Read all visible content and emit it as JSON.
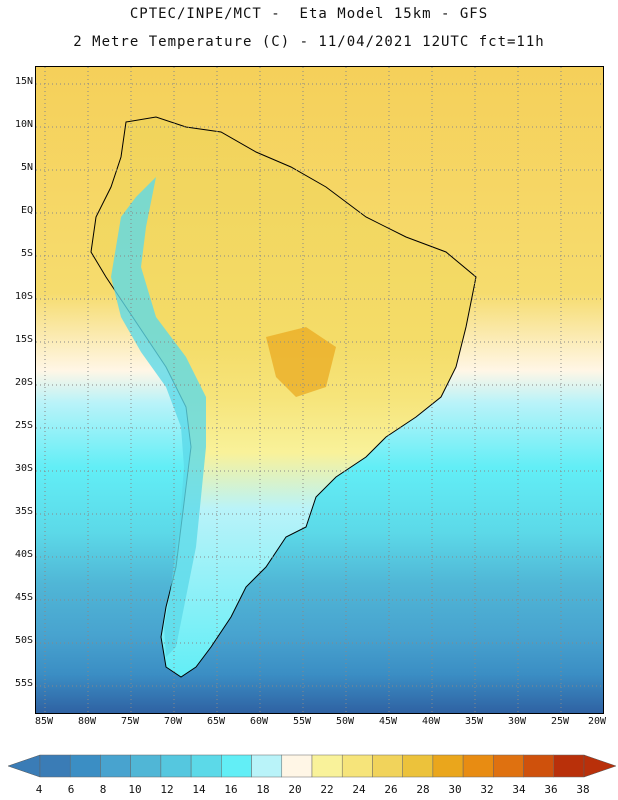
{
  "header": {
    "title_line1": "CPTEC/INPE/MCT -  Eta Model 15km - GFS",
    "title_line2": "2 Metre Temperature (C) - 11/04/2021 12UTC fct=11h"
  },
  "map": {
    "lat_labels": [
      "15N",
      "10N",
      "5N",
      "EQ",
      "5S",
      "10S",
      "15S",
      "20S",
      "25S",
      "30S",
      "35S",
      "40S",
      "45S",
      "50S",
      "55S"
    ],
    "lon_labels": [
      "85W",
      "80W",
      "75W",
      "70W",
      "65W",
      "60W",
      "55W",
      "50W",
      "45W",
      "40W",
      "35W",
      "30W",
      "25W",
      "20W"
    ]
  },
  "colorbar": {
    "labels": [
      "4",
      "6",
      "8",
      "10",
      "12",
      "14",
      "16",
      "18",
      "20",
      "22",
      "24",
      "26",
      "28",
      "30",
      "32",
      "34",
      "36",
      "38"
    ],
    "colors": [
      "#3a7cb6",
      "#3b8ec4",
      "#48a3cf",
      "#50b6d6",
      "#55c7df",
      "#5cd9e8",
      "#62eef6",
      "#b9f3f9",
      "#fff6e6",
      "#f9f29a",
      "#f6e47a",
      "#f1d35b",
      "#ecc23b",
      "#eaa61c",
      "#e88c12",
      "#df7110",
      "#cf510c",
      "#b9300a"
    ]
  }
}
